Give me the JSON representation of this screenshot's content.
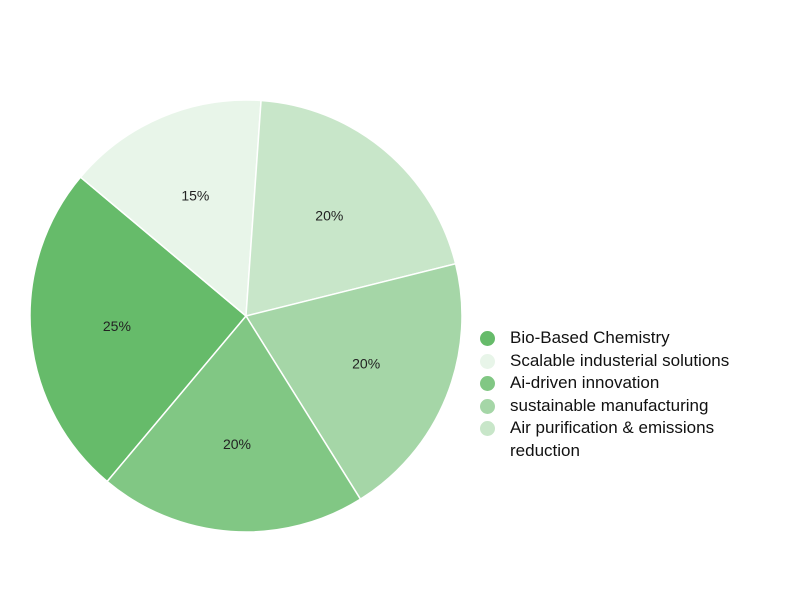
{
  "chart_data": {
    "type": "pie",
    "categories": [
      "Bio-Based Chemistry",
      "Scalable industerial solutions",
      "Ai-driven innovation",
      "sustainable manufacturing",
      "Air purification & emissions reduction"
    ],
    "values": [
      25,
      15,
      20,
      20,
      20
    ],
    "value_labels": [
      "25%",
      "15%",
      "20%",
      "20%",
      "20%"
    ],
    "colors": [
      "#66bb6a",
      "#e8f5e9",
      "#81c784",
      "#a5d6a7",
      "#c8e6c9"
    ],
    "legend": "right"
  }
}
